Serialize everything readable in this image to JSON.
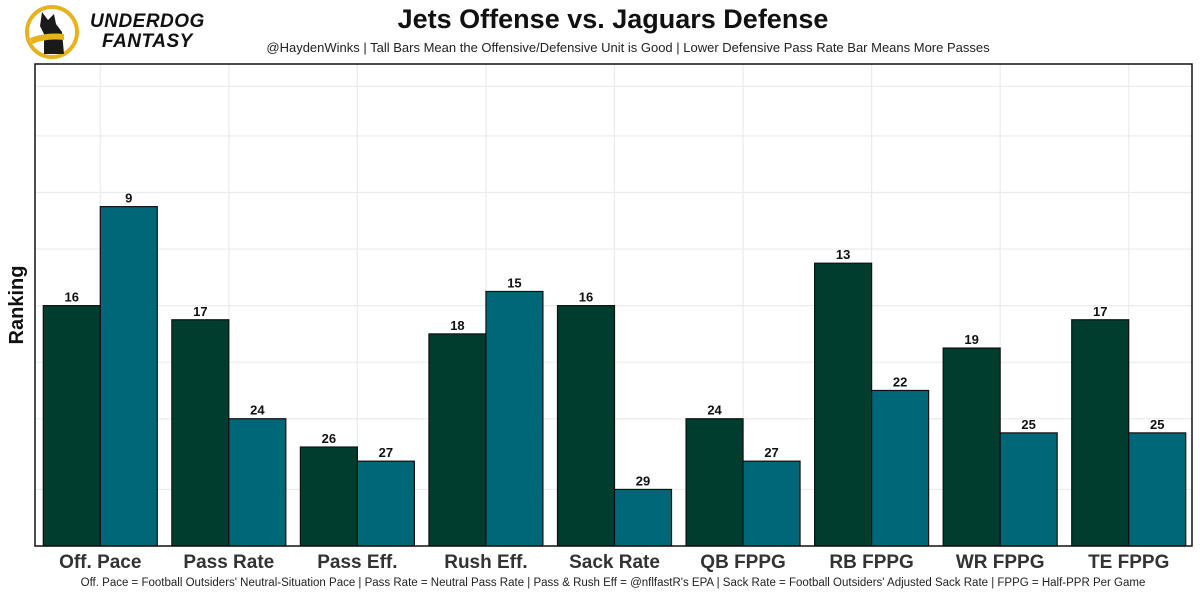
{
  "brand": {
    "line1": "UNDERDOG",
    "line2": "FANTASY",
    "logo_icon": "dog-silhouette-icon",
    "accent": "#e8b21e"
  },
  "chart_data": {
    "type": "bar",
    "title": "Jets Offense vs. Jaguars Defense",
    "subtitle": "@HaydenWinks | Tall Bars Mean the Offensive/Defensive Unit is Good | Lower Defensive Pass Rate Bar Means More Passes",
    "caption": "Off. Pace = Football Outsiders' Neutral-Situation Pace | Pass Rate = Neutral Pass Rate | Pass & Rush Eff = @nflfastR's EPA | Sack Rate = Football Outsiders' Adjusted Sack Rate | FPPG = Half-PPR Per Game",
    "xlabel": "",
    "ylabel": "Ranking",
    "y_scale": "inverted rank (rank 1 = tallest); bar height proportional to 33 - rank",
    "ylim_rank": [
      33,
      -1
    ],
    "grid": true,
    "legend": "none",
    "categories": [
      "Off. Pace",
      "Pass Rate",
      "Pass Eff.",
      "Rush Eff.",
      "Sack Rate",
      "QB FPPG",
      "RB FPPG",
      "WR FPPG",
      "TE FPPG"
    ],
    "series": [
      {
        "name": "Jets Offense",
        "color": "#003d2e",
        "values": [
          16,
          17,
          26,
          18,
          16,
          24,
          13,
          19,
          17
        ]
      },
      {
        "name": "Jaguars Defense",
        "color": "#006778",
        "values": [
          9,
          24,
          27,
          15,
          29,
          27,
          22,
          25,
          25
        ]
      }
    ]
  }
}
